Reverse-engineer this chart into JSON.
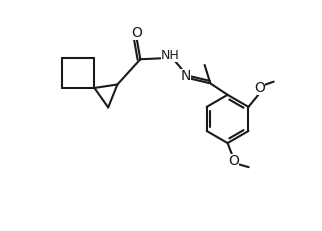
{
  "bg_color": "#ffffff",
  "line_color": "#1a1a1a",
  "lw": 1.5,
  "text_color": "#1a1a1a",
  "fs": 9,
  "figsize": [
    3.22,
    2.31
  ],
  "dpi": 100,
  "xlim": [
    0,
    10
  ],
  "ylim": [
    0,
    10
  ]
}
